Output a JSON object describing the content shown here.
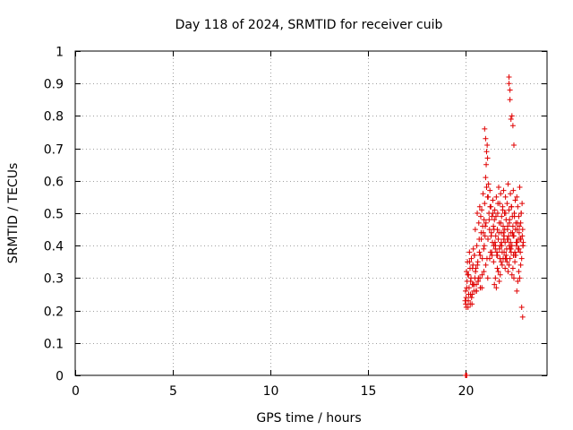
{
  "chart_data": {
    "type": "scatter",
    "title": "Day 118 of 2024, SRMTID for receiver cuib",
    "xlabel": "GPS time / hours",
    "ylabel": "SRMTID / TECUs",
    "xlim": [
      0,
      24.2
    ],
    "ylim": [
      0,
      1
    ],
    "x_ticks": [
      0,
      5,
      10,
      15,
      20
    ],
    "x_tick_labels": [
      "0",
      "5",
      "10",
      "15",
      "20"
    ],
    "y_ticks": [
      0,
      0.1,
      0.2,
      0.3,
      0.4,
      0.5,
      0.6,
      0.7,
      0.8,
      0.9,
      1
    ],
    "y_tick_labels": [
      "0",
      "0.1",
      "0.2",
      "0.3",
      "0.4",
      "0.5",
      "0.6",
      "0.7",
      "0.8",
      "0.9",
      "1"
    ],
    "grid": true,
    "marker": "plus",
    "color": "#e00000",
    "series": [
      {
        "name": "SRMTID",
        "x": [
          20.0,
          20.02,
          20.05,
          20.07,
          20.1,
          20.12,
          20.15,
          20.17,
          20.2,
          20.22,
          20.25,
          20.27,
          20.3,
          20.32,
          20.35,
          20.37,
          20.4,
          20.42,
          20.45,
          20.47,
          20.5,
          20.52,
          20.55,
          20.57,
          20.6,
          20.62,
          20.65,
          20.67,
          20.7,
          20.72,
          20.75,
          20.77,
          20.8,
          20.82,
          20.85,
          20.87,
          20.9,
          20.92,
          20.95,
          20.97,
          21.0,
          21.02,
          21.05,
          21.07,
          21.1,
          21.12,
          21.15,
          21.17,
          21.2,
          21.22,
          21.25,
          21.27,
          21.3,
          21.32,
          21.35,
          21.37,
          21.4,
          21.42,
          21.45,
          21.47,
          21.5,
          21.52,
          21.55,
          21.57,
          21.6,
          21.62,
          21.65,
          21.67,
          21.7,
          21.72,
          21.75,
          21.77,
          21.8,
          21.82,
          21.85,
          21.87,
          21.9,
          21.92,
          21.95,
          21.97,
          22.0,
          22.02,
          22.05,
          22.07,
          22.1,
          22.12,
          22.15,
          22.17,
          22.2,
          22.22,
          22.25,
          22.27,
          22.3,
          22.32,
          22.35,
          22.37,
          22.4,
          22.42,
          22.45,
          22.47,
          22.5,
          22.52,
          22.55,
          22.57,
          22.6,
          22.62,
          22.65,
          22.67,
          22.7,
          22.72,
          22.75,
          22.77,
          22.8,
          22.82,
          22.85,
          22.87,
          22.9,
          22.92,
          22.95,
          22.97,
          20.03,
          20.08,
          20.13,
          20.18,
          20.23,
          20.28,
          20.33,
          20.38,
          20.43,
          20.48,
          20.53,
          20.58,
          20.63,
          20.68,
          20.73,
          20.78,
          20.83,
          20.88,
          20.93,
          20.98,
          21.03,
          21.08,
          21.13,
          21.18,
          21.23,
          21.28,
          21.33,
          21.38,
          21.43,
          21.48,
          21.53,
          21.58,
          21.63,
          21.68,
          21.73,
          21.78,
          21.83,
          21.88,
          21.93,
          21.98,
          22.03,
          22.08,
          22.13,
          22.18,
          22.23,
          22.28,
          22.33,
          22.38,
          22.43,
          22.48,
          22.53,
          22.58,
          22.63,
          22.68,
          22.73,
          22.78,
          22.83,
          22.88,
          22.93,
          22.98,
          20.06,
          20.16,
          20.26,
          20.36,
          20.46,
          20.56,
          20.66,
          20.76,
          20.86,
          20.96,
          21.06,
          21.16,
          21.26,
          21.36,
          21.46,
          21.56,
          21.66,
          21.76,
          21.86,
          21.96,
          22.06,
          22.16,
          22.26,
          22.36,
          22.46,
          22.56,
          22.66,
          22.76,
          22.86,
          22.96,
          21.5,
          21.55,
          21.6,
          21.65,
          21.7,
          21.75,
          21.8,
          21.85,
          21.9,
          21.95,
          22.0,
          22.05,
          22.1,
          22.15,
          22.2,
          22.25,
          22.3,
          22.35,
          22.4,
          22.45,
          22.5,
          22.55,
          22.6,
          22.65,
          22.7,
          22.75,
          22.8,
          22.85,
          22.9,
          22.95,
          21.0,
          21.05,
          21.1,
          21.15,
          22.25,
          22.25,
          22.3,
          22.3,
          22.35,
          22.4,
          22.45,
          22.5,
          20.02,
          20.04,
          20.06,
          20.08
        ],
        "y": [
          0.23,
          0.26,
          0.24,
          0.32,
          0.29,
          0.35,
          0.21,
          0.31,
          0.27,
          0.38,
          0.33,
          0.25,
          0.3,
          0.36,
          0.22,
          0.28,
          0.34,
          0.39,
          0.26,
          0.37,
          0.3,
          0.45,
          0.33,
          0.28,
          0.4,
          0.5,
          0.35,
          0.29,
          0.47,
          0.42,
          0.52,
          0.37,
          0.49,
          0.44,
          0.51,
          0.31,
          0.46,
          0.56,
          0.39,
          0.48,
          0.53,
          0.43,
          0.61,
          0.47,
          0.58,
          0.36,
          0.55,
          0.42,
          0.59,
          0.5,
          0.45,
          0.57,
          0.38,
          0.52,
          0.44,
          0.49,
          0.41,
          0.54,
          0.46,
          0.4,
          0.48,
          0.51,
          0.39,
          0.43,
          0.55,
          0.37,
          0.45,
          0.5,
          0.42,
          0.58,
          0.47,
          0.53,
          0.4,
          0.56,
          0.44,
          0.49,
          0.38,
          0.52,
          0.46,
          0.57,
          0.43,
          0.5,
          0.41,
          0.55,
          0.48,
          0.36,
          0.53,
          0.45,
          0.59,
          0.42,
          0.51,
          0.47,
          0.39,
          0.56,
          0.44,
          0.52,
          0.4,
          0.49,
          0.46,
          0.57,
          0.43,
          0.5,
          0.38,
          0.54,
          0.47,
          0.41,
          0.55,
          0.45,
          0.52,
          0.39,
          0.49,
          0.44,
          0.58,
          0.42,
          0.47,
          0.5,
          0.36,
          0.53,
          0.45,
          0.4,
          0.22,
          0.27,
          0.31,
          0.25,
          0.35,
          0.29,
          0.24,
          0.33,
          0.28,
          0.37,
          0.32,
          0.26,
          0.34,
          0.3,
          0.38,
          0.27,
          0.42,
          0.36,
          0.44,
          0.4,
          0.46,
          0.65,
          0.71,
          0.55,
          0.48,
          0.52,
          0.43,
          0.37,
          0.5,
          0.45,
          0.41,
          0.49,
          0.38,
          0.53,
          0.44,
          0.36,
          0.47,
          0.4,
          0.51,
          0.42,
          0.45,
          0.5,
          0.39,
          0.46,
          0.43,
          0.48,
          0.41,
          0.52,
          0.44,
          0.37,
          0.49,
          0.45,
          0.4,
          0.47,
          0.42,
          0.46,
          0.38,
          0.5,
          0.43,
          0.41,
          0.21,
          0.23,
          0.22,
          0.25,
          0.28,
          0.26,
          0.29,
          0.3,
          0.27,
          0.32,
          0.34,
          0.3,
          0.36,
          0.38,
          0.35,
          0.4,
          0.37,
          0.39,
          0.41,
          0.44,
          0.36,
          0.42,
          0.4,
          0.38,
          0.43,
          0.37,
          0.41,
          0.39,
          0.42,
          0.4,
          0.28,
          0.3,
          0.27,
          0.33,
          0.32,
          0.29,
          0.31,
          0.35,
          0.34,
          0.36,
          0.38,
          0.33,
          0.37,
          0.35,
          0.32,
          0.34,
          0.36,
          0.39,
          0.31,
          0.33,
          0.3,
          0.35,
          0.37,
          0.26,
          0.29,
          0.32,
          0.3,
          0.34,
          0.21,
          0.18,
          0.76,
          0.73,
          0.69,
          0.67,
          0.92,
          0.9,
          0.88,
          0.85,
          0.79,
          0.8,
          0.77,
          0.71,
          0.0,
          0.0,
          0.0,
          0.0
        ]
      }
    ]
  }
}
